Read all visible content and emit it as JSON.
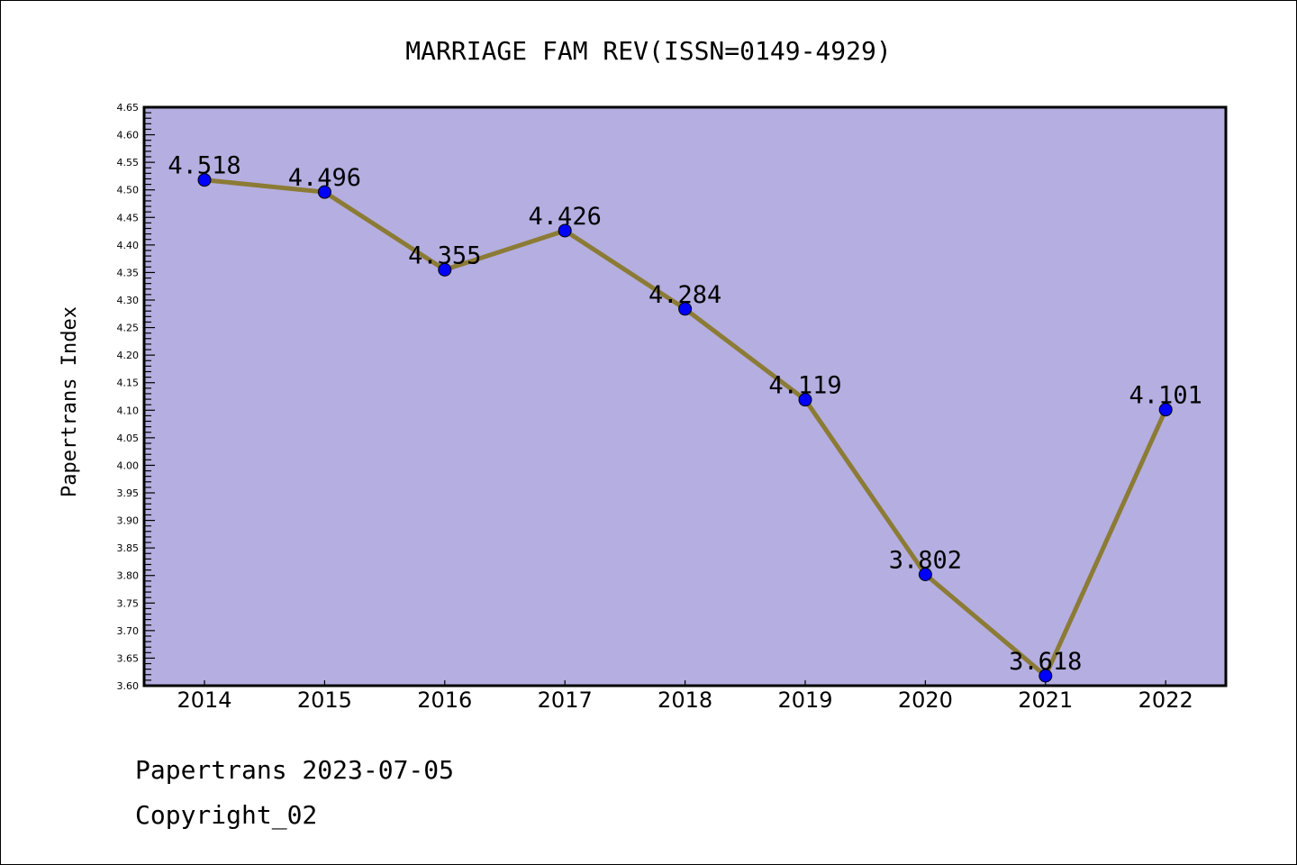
{
  "chart_data": {
    "type": "line",
    "title": "MARRIAGE FAM REV(ISSN=0149-4929)",
    "xlabel": "",
    "ylabel": "Papertrans Index",
    "categories": [
      "2014",
      "2015",
      "2016",
      "2017",
      "2018",
      "2019",
      "2020",
      "2021",
      "2022"
    ],
    "values": [
      4.518,
      4.496,
      4.355,
      4.426,
      4.284,
      4.119,
      3.802,
      3.618,
      4.101
    ],
    "data_labels": [
      "4.518",
      "4.496",
      "4.355",
      "4.426",
      "4.284",
      "4.119",
      "3.802",
      "3.618",
      "4.101"
    ],
    "ylim": [
      3.6,
      4.65
    ],
    "yticks": [
      "3.60",
      "3.65",
      "3.70",
      "3.75",
      "3.80",
      "3.85",
      "3.90",
      "3.95",
      "4.00",
      "4.05",
      "4.10",
      "4.15",
      "4.20",
      "4.25",
      "4.30",
      "4.35",
      "4.40",
      "4.45",
      "4.50",
      "4.55",
      "4.60",
      "4.65"
    ],
    "grid": false,
    "colors": {
      "plot_bg": "#B5AEE0",
      "line": "#8B7B35",
      "marker": "#0000FF"
    }
  },
  "footer": {
    "date_line": "Papertrans 2023-07-05",
    "copyright": "Copyright_02"
  }
}
